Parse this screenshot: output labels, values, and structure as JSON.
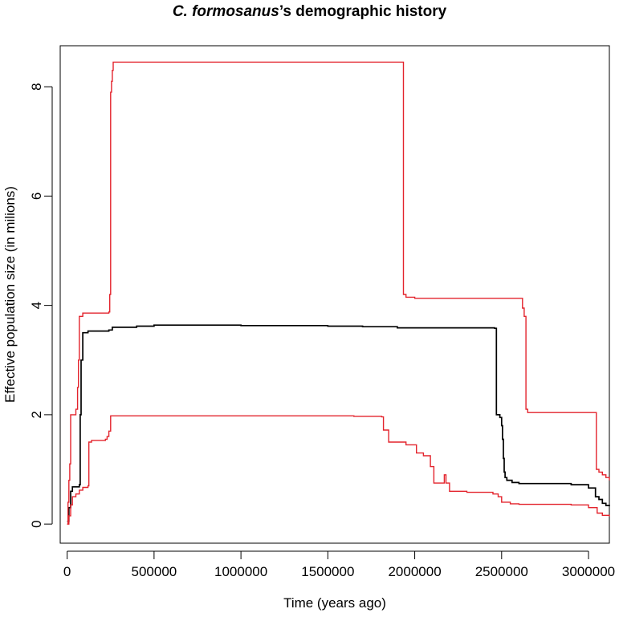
{
  "chart_data": {
    "type": "line",
    "title_species": "C. formosanus",
    "title_rest": "’s demographic history",
    "xlabel": "Time (years ago)",
    "ylabel": "Effective population size (in milions)",
    "xlim": [
      -40000,
      3120000
    ],
    "ylim": [
      -0.35,
      8.75
    ],
    "x_ticks": [
      0,
      500000,
      1000000,
      1500000,
      2000000,
      2500000,
      3000000
    ],
    "x_tick_labels": [
      "0",
      "500000",
      "1000000",
      "1500000",
      "2000000",
      "2500000",
      "3000000"
    ],
    "y_ticks": [
      0,
      2,
      4,
      6,
      8
    ],
    "y_tick_labels": [
      "0",
      "2",
      "4",
      "6",
      "8"
    ],
    "grid": false,
    "series": [
      {
        "color": "#000000",
        "step": true,
        "points": [
          [
            0,
            0.05
          ],
          [
            10000,
            0.3
          ],
          [
            20000,
            0.6
          ],
          [
            30000,
            0.68
          ],
          [
            70000,
            0.72
          ],
          [
            75000,
            2.0
          ],
          [
            80000,
            3.0
          ],
          [
            90000,
            3.5
          ],
          [
            120000,
            3.53
          ],
          [
            240000,
            3.55
          ],
          [
            260000,
            3.6
          ],
          [
            400000,
            3.62
          ],
          [
            500000,
            3.64
          ],
          [
            600000,
            3.64
          ],
          [
            1000000,
            3.63
          ],
          [
            1500000,
            3.62
          ],
          [
            1700000,
            3.61
          ],
          [
            1900000,
            3.59
          ],
          [
            2460000,
            3.58
          ],
          [
            2470000,
            2.0
          ],
          [
            2490000,
            1.95
          ],
          [
            2500000,
            1.8
          ],
          [
            2505000,
            1.55
          ],
          [
            2510000,
            1.2
          ],
          [
            2515000,
            0.95
          ],
          [
            2520000,
            0.85
          ],
          [
            2530000,
            0.8
          ],
          [
            2560000,
            0.76
          ],
          [
            2600000,
            0.74
          ],
          [
            2900000,
            0.72
          ],
          [
            3000000,
            0.66
          ],
          [
            3040000,
            0.5
          ],
          [
            3060000,
            0.45
          ],
          [
            3080000,
            0.38
          ],
          [
            3100000,
            0.34
          ],
          [
            3120000,
            0.33
          ]
        ]
      },
      {
        "color": "#e3232c",
        "step": true,
        "points": [
          [
            0,
            0.0
          ],
          [
            5000,
            0.4
          ],
          [
            10000,
            0.8
          ],
          [
            15000,
            1.1
          ],
          [
            20000,
            2.0
          ],
          [
            50000,
            2.1
          ],
          [
            60000,
            2.5
          ],
          [
            65000,
            3.0
          ],
          [
            70000,
            3.8
          ],
          [
            90000,
            3.86
          ],
          [
            240000,
            3.88
          ],
          [
            245000,
            4.2
          ],
          [
            250000,
            7.9
          ],
          [
            255000,
            8.1
          ],
          [
            260000,
            8.3
          ],
          [
            265000,
            8.45
          ],
          [
            1930000,
            8.45
          ],
          [
            1935000,
            4.2
          ],
          [
            1950000,
            4.15
          ],
          [
            2000000,
            4.13
          ],
          [
            2610000,
            4.13
          ],
          [
            2620000,
            3.95
          ],
          [
            2630000,
            3.8
          ],
          [
            2640000,
            2.1
          ],
          [
            2650000,
            2.04
          ],
          [
            3040000,
            2.04
          ],
          [
            3045000,
            1.0
          ],
          [
            3060000,
            0.95
          ],
          [
            3080000,
            0.9
          ],
          [
            3100000,
            0.85
          ],
          [
            3120000,
            0.8
          ]
        ]
      },
      {
        "color": "#e3232c",
        "step": true,
        "points": [
          [
            0,
            0.0
          ],
          [
            10000,
            0.15
          ],
          [
            20000,
            0.35
          ],
          [
            30000,
            0.5
          ],
          [
            50000,
            0.55
          ],
          [
            70000,
            0.62
          ],
          [
            90000,
            0.67
          ],
          [
            120000,
            0.7
          ],
          [
            125000,
            1.5
          ],
          [
            140000,
            1.53
          ],
          [
            220000,
            1.55
          ],
          [
            230000,
            1.6
          ],
          [
            240000,
            1.7
          ],
          [
            250000,
            1.98
          ],
          [
            1500000,
            1.98
          ],
          [
            1650000,
            1.97
          ],
          [
            1810000,
            1.96
          ],
          [
            1820000,
            1.72
          ],
          [
            1850000,
            1.5
          ],
          [
            1950000,
            1.45
          ],
          [
            2000000,
            1.45
          ],
          [
            2010000,
            1.3
          ],
          [
            2050000,
            1.25
          ],
          [
            2090000,
            1.05
          ],
          [
            2110000,
            0.75
          ],
          [
            2160000,
            0.75
          ],
          [
            2170000,
            0.9
          ],
          [
            2180000,
            0.75
          ],
          [
            2200000,
            0.6
          ],
          [
            2300000,
            0.58
          ],
          [
            2450000,
            0.55
          ],
          [
            2480000,
            0.5
          ],
          [
            2500000,
            0.4
          ],
          [
            2550000,
            0.37
          ],
          [
            2600000,
            0.36
          ],
          [
            2900000,
            0.35
          ],
          [
            3000000,
            0.3
          ],
          [
            3050000,
            0.2
          ],
          [
            3080000,
            0.16
          ],
          [
            3120000,
            0.14
          ]
        ]
      }
    ]
  }
}
